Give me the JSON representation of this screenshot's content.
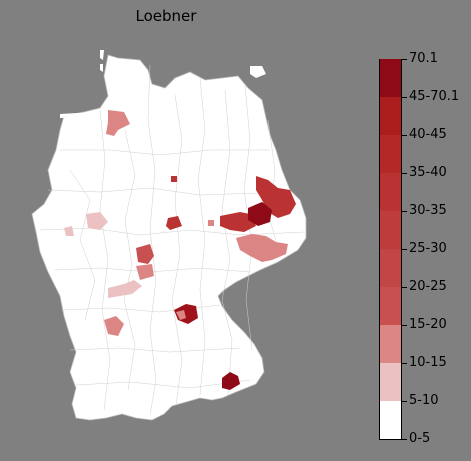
{
  "map": {
    "title": "Loebner",
    "colors": {
      "background": "#808080",
      "land": "#ffffff",
      "border": "#b8b8b8"
    },
    "legend": {
      "ticks": [
        "70.1",
        "45-70.1",
        "40-45",
        "35-40",
        "30-35",
        "25-30",
        "20-25",
        "15-20",
        "10-15",
        "5-10",
        "0-5"
      ],
      "bins": [
        {
          "label": "0-5",
          "color": "#ffffff"
        },
        {
          "label": "5-10",
          "color": "#ecc1c1"
        },
        {
          "label": "10-15",
          "color": "#dc8585"
        },
        {
          "label": "15-20",
          "color": "#c85050"
        },
        {
          "label": "20-25",
          "color": "#c34646"
        },
        {
          "label": "25-30",
          "color": "#bf3c3c"
        },
        {
          "label": "30-35",
          "color": "#bb3232"
        },
        {
          "label": "35-40",
          "color": "#b42828"
        },
        {
          "label": "40-45",
          "color": "#ac1e1e"
        },
        {
          "label": "45-70.1",
          "color": "#a01219"
        },
        {
          "label": "70.1",
          "color": "#8e0a17"
        }
      ]
    },
    "highlighted_regions": [
      {
        "region": "north-west near Hamburg",
        "color": "#dc8585"
      },
      {
        "region": "west central",
        "color": "#ecc1c1"
      },
      {
        "region": "central small",
        "color": "#bb3232"
      },
      {
        "region": "central mid",
        "color": "#bb3232"
      },
      {
        "region": "east Brandenburg",
        "color": "#bb3232"
      },
      {
        "region": "Saxony dark",
        "color": "#8e0a17"
      },
      {
        "region": "Saxony south-east",
        "color": "#dc8585"
      },
      {
        "region": "Hesse band",
        "color": "#c85050"
      },
      {
        "region": "south-west",
        "color": "#dc8585"
      },
      {
        "region": "Franconia",
        "color": "#a01219"
      },
      {
        "region": "Bavaria south-east",
        "color": "#8e0a17"
      }
    ]
  }
}
